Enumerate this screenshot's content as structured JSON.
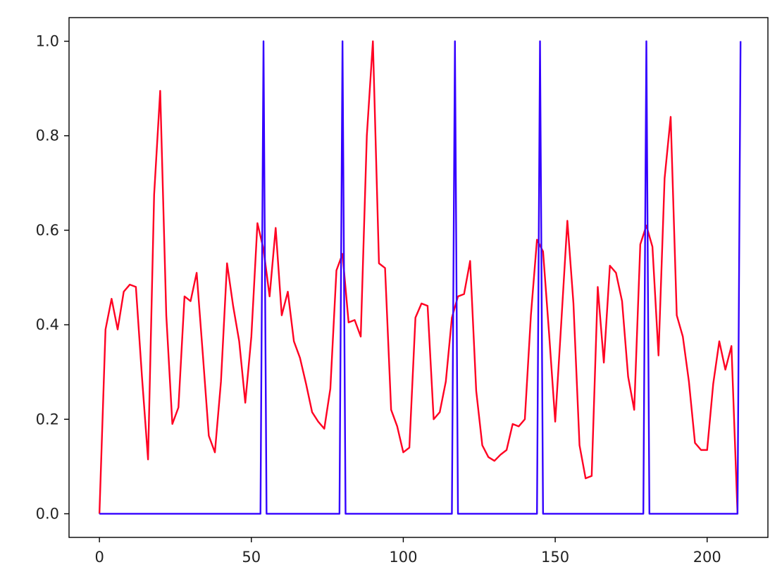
{
  "chart_data": {
    "type": "line",
    "xlim": [
      -10,
      220
    ],
    "ylim": [
      -0.05,
      1.05
    ],
    "x_ticks": [
      0,
      50,
      100,
      150,
      200
    ],
    "y_ticks": [
      0.0,
      0.2,
      0.4,
      0.6,
      0.8,
      1.0
    ],
    "x_tick_labels": [
      "0",
      "50",
      "100",
      "150",
      "200"
    ],
    "y_tick_labels": [
      "0.0",
      "0.2",
      "0.4",
      "0.6",
      "0.8",
      "1.0"
    ],
    "grid": false,
    "legend": "none",
    "series": [
      {
        "color": "#ff0022",
        "x": [
          0,
          2,
          4,
          6,
          8,
          10,
          12,
          14,
          16,
          18,
          20,
          22,
          24,
          26,
          28,
          30,
          32,
          34,
          36,
          38,
          40,
          42,
          44,
          46,
          48,
          50,
          52,
          54,
          56,
          58,
          60,
          62,
          64,
          66,
          68,
          70,
          72,
          74,
          76,
          78,
          80,
          82,
          84,
          86,
          88,
          90,
          92,
          94,
          96,
          98,
          100,
          102,
          104,
          106,
          108,
          110,
          112,
          114,
          116,
          118,
          120,
          122,
          124,
          126,
          128,
          130,
          132,
          134,
          136,
          138,
          140,
          142,
          144,
          146,
          148,
          150,
          152,
          154,
          156,
          158,
          160,
          162,
          164,
          166,
          168,
          170,
          172,
          174,
          176,
          178,
          180,
          182,
          184,
          186,
          188,
          190,
          192,
          194,
          196,
          198,
          200,
          202,
          204,
          206,
          208,
          210
        ],
        "values": [
          0.0,
          0.39,
          0.455,
          0.39,
          0.47,
          0.485,
          0.48,
          0.29,
          0.115,
          0.675,
          0.895,
          0.42,
          0.19,
          0.225,
          0.46,
          0.45,
          0.51,
          0.34,
          0.165,
          0.13,
          0.28,
          0.53,
          0.44,
          0.365,
          0.235,
          0.375,
          0.615,
          0.56,
          0.46,
          0.605,
          0.42,
          0.47,
          0.365,
          0.33,
          0.275,
          0.215,
          0.195,
          0.18,
          0.265,
          0.515,
          0.55,
          0.405,
          0.41,
          0.375,
          0.8,
          1.0,
          0.53,
          0.52,
          0.22,
          0.185,
          0.13,
          0.14,
          0.415,
          0.445,
          0.44,
          0.2,
          0.215,
          0.28,
          0.415,
          0.46,
          0.465,
          0.535,
          0.26,
          0.145,
          0.12,
          0.112,
          0.125,
          0.135,
          0.19,
          0.185,
          0.2,
          0.42,
          0.58,
          0.555,
          0.38,
          0.195,
          0.405,
          0.62,
          0.445,
          0.145,
          0.075,
          0.08,
          0.48,
          0.32,
          0.525,
          0.51,
          0.45,
          0.29,
          0.22,
          0.57,
          0.61,
          0.565,
          0.335,
          0.71,
          0.84,
          0.42,
          0.375,
          0.28,
          0.15,
          0.135,
          0.135,
          0.275,
          0.365,
          0.305,
          0.355,
          0.0
        ]
      },
      {
        "color": "#3300ff",
        "x": [
          0,
          53,
          54,
          55,
          79,
          80,
          81,
          116,
          117,
          118,
          144,
          145,
          146,
          179,
          180,
          181,
          210,
          211
        ],
        "values": [
          0,
          0,
          1,
          0,
          0,
          1,
          0,
          0,
          1,
          0,
          0,
          1,
          0,
          0,
          1,
          0,
          0,
          1
        ]
      }
    ]
  }
}
